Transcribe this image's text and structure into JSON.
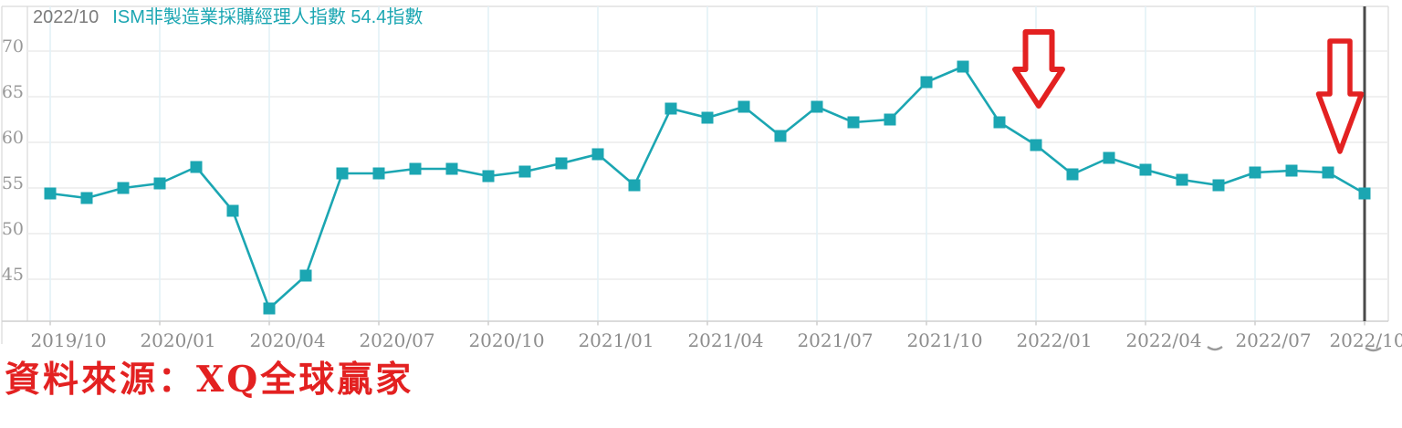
{
  "header": {
    "date_label": "2022/10",
    "title": "ISM非製造業採購經理人指數 54.4指數"
  },
  "chart_data": {
    "type": "line",
    "marker_shape": "square",
    "series_name": "ISM非製造業採購經理人指數",
    "latest_date": "2022/10",
    "latest_value": 54.4,
    "x": [
      "2019/10",
      "2019/11",
      "2019/12",
      "2020/01",
      "2020/02",
      "2020/03",
      "2020/04",
      "2020/05",
      "2020/06",
      "2020/07",
      "2020/08",
      "2020/09",
      "2020/10",
      "2020/11",
      "2020/12",
      "2021/01",
      "2021/02",
      "2021/03",
      "2021/04",
      "2021/05",
      "2021/06",
      "2021/07",
      "2021/08",
      "2021/09",
      "2021/10",
      "2021/11",
      "2021/12",
      "2022/01",
      "2022/02",
      "2022/03",
      "2022/04",
      "2022/05",
      "2022/06",
      "2022/07",
      "2022/08",
      "2022/09",
      "2022/10"
    ],
    "values": [
      54.4,
      53.9,
      55.0,
      55.5,
      57.3,
      52.5,
      41.8,
      45.4,
      56.6,
      56.6,
      57.1,
      57.1,
      56.3,
      56.8,
      57.7,
      58.7,
      55.3,
      63.7,
      62.7,
      63.9,
      60.7,
      63.9,
      62.2,
      62.5,
      66.6,
      68.3,
      62.2,
      59.7,
      56.5,
      58.3,
      57.0,
      55.9,
      55.3,
      56.7,
      56.9,
      56.7,
      54.4
    ],
    "x_tick_labels": [
      "2019/10",
      "2020/01",
      "2020/04",
      "2020/07",
      "2020/10",
      "2021/01",
      "2021/04",
      "2021/07",
      "2021/10",
      "2022/01",
      "2022/04",
      "2022/07",
      "2022/10"
    ],
    "y_ticks": [
      70,
      65,
      60,
      55,
      50,
      45
    ],
    "ylim": [
      40.3,
      74.6
    ],
    "grid": "on",
    "legend": "none",
    "cursor_at": "2022/10",
    "annotations": [
      {
        "type": "down-arrow",
        "near_x": "2022/01",
        "color": "#e32121"
      },
      {
        "type": "down-arrow",
        "near_x": "2022/10",
        "color": "#e32121"
      }
    ],
    "colors": {
      "line": "#1ba6b2",
      "marker": "#1ba6b2",
      "title_accent": "#1ba6b2",
      "date_gray": "#7c7c7c",
      "axis_label_gray": "#949494",
      "h_grid": "#ececec",
      "v_grid": "#e2f1f7",
      "border": "#d9d9d9",
      "annotation_red": "#e32121",
      "cursor_line": "#4a4a4a"
    }
  },
  "source": {
    "text": "資料來源：XQ全球贏家"
  }
}
